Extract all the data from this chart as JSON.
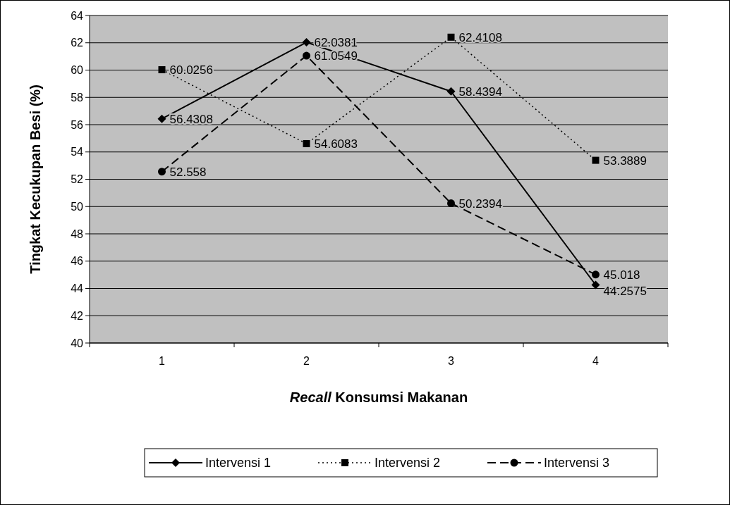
{
  "chart_data": {
    "type": "line",
    "xlabel": "Recall Konsumsi Makanan",
    "ylabel": "Tingkat Kecukupan Besi (%)",
    "categories": [
      "1",
      "2",
      "3",
      "4"
    ],
    "series": [
      {
        "name": "Intervensi 1",
        "color": "#000000",
        "marker": "diamond",
        "line_style": "solid",
        "values": [
          56.4308,
          62.0381,
          58.4394,
          44.2575
        ]
      },
      {
        "name": "Intervensi 2",
        "color": "#000000",
        "marker": "square",
        "line_style": "dotted",
        "values": [
          60.0256,
          54.6083,
          62.4108,
          53.3889
        ]
      },
      {
        "name": "Intervensi 3",
        "color": "#000000",
        "marker": "circle",
        "line_style": "dashed",
        "values": [
          52.558,
          61.0549,
          50.2394,
          45.018
        ]
      }
    ],
    "ylim": [
      40,
      64
    ],
    "yticks": [
      40,
      42,
      44,
      46,
      48,
      50,
      52,
      54,
      56,
      58,
      60,
      62,
      64
    ],
    "grid": "y",
    "legend": "bottom",
    "data_labels": true
  }
}
